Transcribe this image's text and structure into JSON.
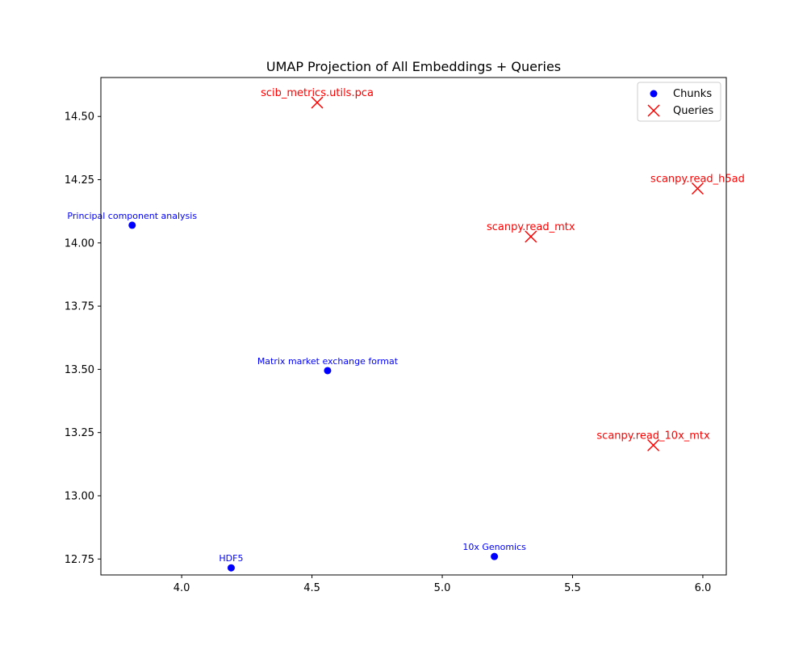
{
  "chart_data": {
    "type": "scatter",
    "title": "UMAP Projection of All Embeddings + Queries",
    "xlabel": "",
    "ylabel": "",
    "xlim": [
      3.69,
      6.09
    ],
    "ylim": [
      12.687,
      14.654
    ],
    "x_ticks": [
      4.0,
      4.5,
      5.0,
      5.5,
      6.0
    ],
    "x_tick_labels": [
      "4.0",
      "4.5",
      "5.0",
      "5.5",
      "6.0"
    ],
    "y_ticks": [
      12.75,
      13.0,
      13.25,
      13.5,
      13.75,
      14.0,
      14.25,
      14.5
    ],
    "y_tick_labels": [
      "12.75",
      "13.00",
      "13.25",
      "13.50",
      "13.75",
      "14.00",
      "14.25",
      "14.50"
    ],
    "grid": false,
    "legend_position": "top-right",
    "series": [
      {
        "name": "Chunks",
        "marker": "circle",
        "color": "#0000ff",
        "points": [
          {
            "x": 3.81,
            "y": 14.07,
            "label": "Principal component analysis"
          },
          {
            "x": 4.56,
            "y": 13.495,
            "label": "Matrix market exchange format"
          },
          {
            "x": 4.19,
            "y": 12.715,
            "label": "HDF5"
          },
          {
            "x": 5.2,
            "y": 12.76,
            "label": "10x Genomics"
          }
        ]
      },
      {
        "name": "Queries",
        "marker": "x",
        "color": "#ff0000",
        "points": [
          {
            "x": 4.52,
            "y": 14.555,
            "label": "scib_metrics.utils.pca"
          },
          {
            "x": 5.98,
            "y": 14.215,
            "label": "scanpy.read_h5ad"
          },
          {
            "x": 5.34,
            "y": 14.025,
            "label": "scanpy.read_mtx"
          },
          {
            "x": 5.81,
            "y": 13.2,
            "label": "scanpy.read_10x_mtx"
          }
        ]
      }
    ]
  }
}
